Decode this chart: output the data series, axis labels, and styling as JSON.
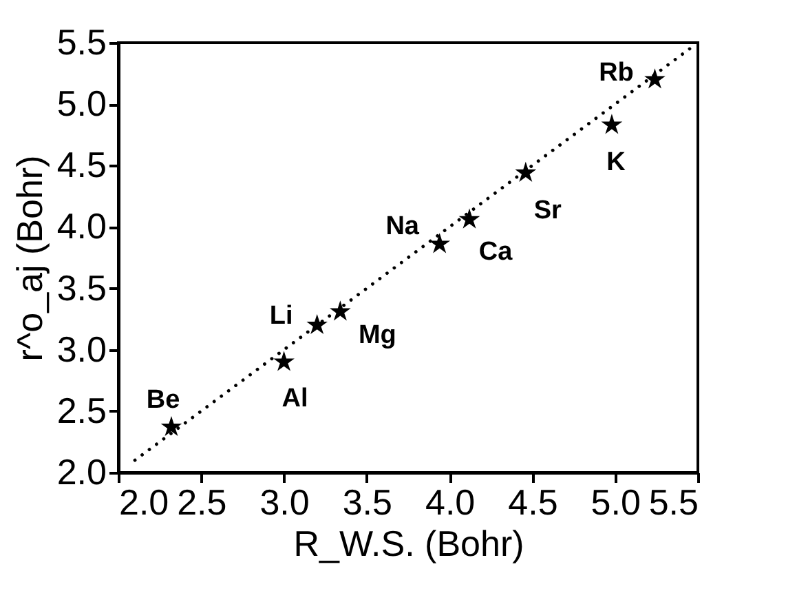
{
  "chart_data": {
    "type": "scatter",
    "xlabel": "R_W.S. (Bohr)",
    "ylabel": "r^o_aj (Bohr)",
    "series": [
      {
        "type": "scatter",
        "color": "#000000",
        "marker": "star",
        "x": [
          2.32,
          3.0,
          3.2,
          3.34,
          3.94,
          4.12,
          4.46,
          4.98,
          5.24
        ],
        "values": [
          2.37,
          2.9,
          3.2,
          3.31,
          3.86,
          4.06,
          4.44,
          4.83,
          5.2
        ]
      },
      {
        "type": "line",
        "color": "#000000",
        "line_style": "dotted",
        "x": [
          2.1,
          5.45
        ],
        "values": [
          2.1,
          5.45
        ]
      }
    ],
    "annotations": [
      {
        "text": "Be",
        "x": 2.32,
        "y": 2.37
      },
      {
        "text": "Al",
        "x": 3.0,
        "y": 2.9
      },
      {
        "text": "Li",
        "x": 3.2,
        "y": 3.2
      },
      {
        "text": "Mg",
        "x": 3.34,
        "y": 3.31
      },
      {
        "text": "Na",
        "x": 3.94,
        "y": 3.86
      },
      {
        "text": "Ca",
        "x": 4.12,
        "y": 4.06
      },
      {
        "text": "Sr",
        "x": 4.46,
        "y": 4.44
      },
      {
        "text": "K",
        "x": 4.98,
        "y": 4.83
      },
      {
        "text": "Rb",
        "x": 5.24,
        "y": 5.2
      }
    ],
    "xlim": [
      2.0,
      5.5
    ],
    "ylim": [
      2.0,
      5.5
    ],
    "xticks": [
      {
        "value": 2.0,
        "label": "2.0"
      },
      2.5,
      {
        "value": 3.0,
        "label": "3.0"
      },
      3.5,
      {
        "value": 4.0,
        "label": "4.0"
      },
      4.5,
      {
        "value": 5.0,
        "label": "5.0"
      },
      5.5
    ],
    "yticks": [
      {
        "value": 2.0,
        "label": "2.0"
      },
      2.5,
      {
        "value": 3.0,
        "label": "3.0"
      },
      3.5,
      {
        "value": 4.0,
        "label": "4.0"
      },
      4.5,
      {
        "value": 5.0,
        "label": "5.0"
      },
      5.5
    ],
    "grid": false
  }
}
